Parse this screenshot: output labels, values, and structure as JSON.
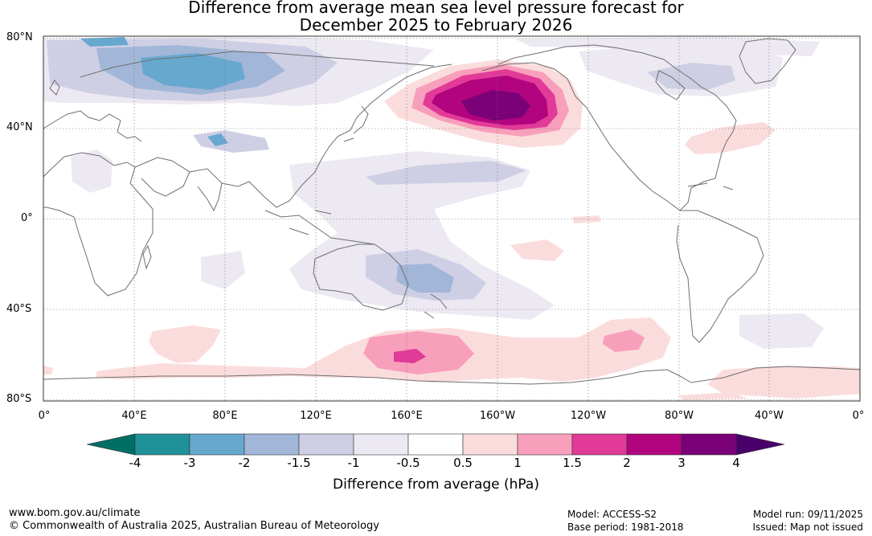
{
  "title": {
    "line1": "Difference from average mean sea level pressure forecast for",
    "line2": "December 2025 to February 2026"
  },
  "map": {
    "lat_labels": [
      "80°N",
      "40°N",
      "0°",
      "40°S",
      "80°S"
    ],
    "lon_labels": [
      "0°",
      "40°E",
      "80°E",
      "120°E",
      "160°E",
      "160°W",
      "120°W",
      "80°W",
      "40°W",
      "0°"
    ]
  },
  "colorbar": {
    "title": "Difference from average (hPa)",
    "tick_labels": [
      "-4",
      "-3",
      "-2",
      "-1.5",
      "-1",
      "-0.5",
      "0.5",
      "1",
      "1.5",
      "2",
      "3",
      "4"
    ],
    "colors": {
      "below_min": "#006e63",
      "neg4_neg3": "#1f9199",
      "neg3_neg2": "#67a8cf",
      "neg2_neg15": "#a2b6d8",
      "neg15_neg1": "#cecfe5",
      "neg1_neg05": "#ede9f2",
      "neutral": "#ffffff",
      "pos05_1": "#fbdcdc",
      "pos1_15": "#f89fbb",
      "pos15_2": "#e13a99",
      "pos2_3": "#b1047e",
      "pos3_4": "#7a0177",
      "above_max": "#4a006a"
    }
  },
  "footer": {
    "url": "www.bom.gov.au/climate",
    "copyright": "© Commonwealth of Australia 2025, Australian Bureau of Meteorology",
    "model": "Model: ACCESS-S2",
    "base_period": "Base period: 1981-2018",
    "model_run": "Model run: 09/11/2025",
    "issued": "Issued: Map not issued"
  }
}
